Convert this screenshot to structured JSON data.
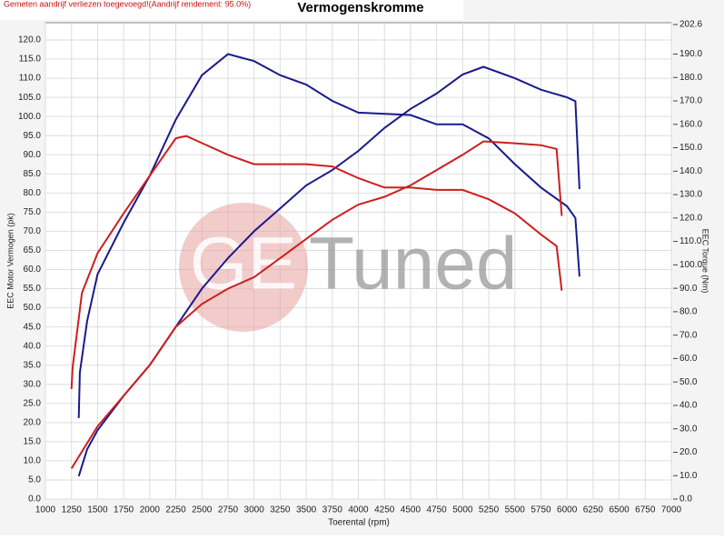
{
  "chart_data": {
    "type": "line",
    "notice": "Gemeten aandrijf verliezen toegevoegd!(Aandrijf rendement: 95.0%)",
    "title": "Vermogenskromme",
    "watermark": {
      "left": "GE",
      "right": "Tuned"
    },
    "x_label": "Toerental (rpm)",
    "y_label": "EEC Motor Vermogen (pk)",
    "y2_label": "EEC Torque (Nm)",
    "grid": true,
    "xlim": [
      1000,
      7000
    ],
    "xticks": [
      1000,
      1250,
      1500,
      1750,
      2000,
      2250,
      2500,
      2750,
      3000,
      3250,
      3500,
      3750,
      4000,
      4250,
      4500,
      4750,
      5000,
      5250,
      5500,
      5750,
      6000,
      6250,
      6500,
      6750,
      7000
    ],
    "ylim": [
      0,
      120
    ],
    "yticks": [
      {
        "value": 0,
        "label": "0.0"
      },
      {
        "value": 5,
        "label": "5.0"
      },
      {
        "value": 10,
        "label": "10.0"
      },
      {
        "value": 15,
        "label": "15.0"
      },
      {
        "value": 20,
        "label": "20.0"
      },
      {
        "value": 25,
        "label": "25.0"
      },
      {
        "value": 30,
        "label": "30.0"
      },
      {
        "value": 35,
        "label": "35.0"
      },
      {
        "value": 40,
        "label": "40.0"
      },
      {
        "value": 45,
        "label": "45.0"
      },
      {
        "value": 50,
        "label": "50.0"
      },
      {
        "value": 55,
        "label": "55.0"
      },
      {
        "value": 60,
        "label": "60.0"
      },
      {
        "value": 65,
        "label": "65.0"
      },
      {
        "value": 70,
        "label": "70.0"
      },
      {
        "value": 75,
        "label": "75.0"
      },
      {
        "value": 80,
        "label": "80.0"
      },
      {
        "value": 85,
        "label": "85.0"
      },
      {
        "value": 90,
        "label": "90.0"
      },
      {
        "value": 95,
        "label": "95.0"
      },
      {
        "value": 100,
        "label": "100.0"
      },
      {
        "value": 105,
        "label": "105.0"
      },
      {
        "value": 110,
        "label": "110.0"
      },
      {
        "value": 115,
        "label": "115.0"
      },
      {
        "value": 120,
        "label": "120.0"
      }
    ],
    "y2lim": [
      0,
      202.6
    ],
    "y2ticks": [
      {
        "value": 0,
        "label": "0.0"
      },
      {
        "value": 10,
        "label": "10.0"
      },
      {
        "value": 20,
        "label": "20.0"
      },
      {
        "value": 30,
        "label": "30.0"
      },
      {
        "value": 40,
        "label": "40.0"
      },
      {
        "value": 50,
        "label": "50.0"
      },
      {
        "value": 60,
        "label": "60.0"
      },
      {
        "value": 70,
        "label": "70.0"
      },
      {
        "value": 80,
        "label": "80.0"
      },
      {
        "value": 90,
        "label": "90.0"
      },
      {
        "value": 100,
        "label": "100.0"
      },
      {
        "value": 110,
        "label": "110.0"
      },
      {
        "value": 120,
        "label": "120.0"
      },
      {
        "value": 130,
        "label": "130.0"
      },
      {
        "value": 140,
        "label": "140.0"
      },
      {
        "value": 150,
        "label": "150.0"
      },
      {
        "value": 160,
        "label": "160.0"
      },
      {
        "value": 170,
        "label": "170.0"
      },
      {
        "value": 180,
        "label": "180.0"
      },
      {
        "value": 190,
        "label": "190.0"
      },
      {
        "value": 202.6,
        "label": "202.6"
      }
    ],
    "series": [
      {
        "color": "#1a1a8c",
        "axis": "y",
        "x": [
          1320,
          1400,
          1500,
          1750,
          2000,
          2250,
          2500,
          2750,
          3000,
          3250,
          3500,
          3750,
          4000,
          4250,
          4500,
          4750,
          5000,
          5200,
          5500,
          5750,
          6000,
          6080,
          6120
        ],
        "values": [
          6,
          13,
          18,
          27,
          35,
          45,
          55,
          63,
          70,
          76,
          82,
          86,
          91,
          97,
          102,
          106,
          111,
          113,
          110,
          107,
          105,
          104,
          81
        ]
      },
      {
        "color": "#1a1a8c",
        "axis": "y2",
        "x": [
          1320,
          1330,
          1400,
          1500,
          1750,
          2000,
          2250,
          2500,
          2750,
          3000,
          3250,
          3500,
          3750,
          4000,
          4500,
          4750,
          5000,
          5250,
          5500,
          5750,
          6000,
          6080,
          6120
        ],
        "values": [
          34.6,
          54,
          76,
          96,
          118,
          138,
          162,
          181,
          190,
          187,
          181,
          177,
          170,
          165,
          164,
          160,
          160,
          154,
          143,
          133,
          125,
          120,
          95
        ]
      },
      {
        "color": "#cc1f1f",
        "axis": "y",
        "x": [
          1250,
          1500,
          1750,
          2000,
          2250,
          2500,
          2750,
          3000,
          3250,
          3500,
          3750,
          4000,
          4250,
          4500,
          4750,
          5000,
          5200,
          5500,
          5750,
          5900,
          5950
        ],
        "values": [
          8,
          19,
          27,
          35,
          45,
          51,
          55,
          58,
          63,
          68,
          73,
          77,
          79,
          82,
          86,
          90,
          93.5,
          93,
          92.5,
          91.5,
          74
        ]
      },
      {
        "color": "#cc1f1f",
        "axis": "y2",
        "x": [
          1250,
          1260,
          1350,
          1500,
          1750,
          2000,
          2250,
          2350,
          2500,
          2750,
          3000,
          3250,
          3500,
          3750,
          4000,
          4250,
          4500,
          4750,
          5000,
          5250,
          5500,
          5750,
          5900,
          5950
        ],
        "values": [
          47,
          56,
          88,
          105,
          122,
          138,
          154,
          155,
          152,
          147,
          143,
          143,
          143,
          142,
          137,
          133,
          133,
          132,
          132,
          128,
          122,
          113,
          108,
          89
        ]
      }
    ]
  }
}
